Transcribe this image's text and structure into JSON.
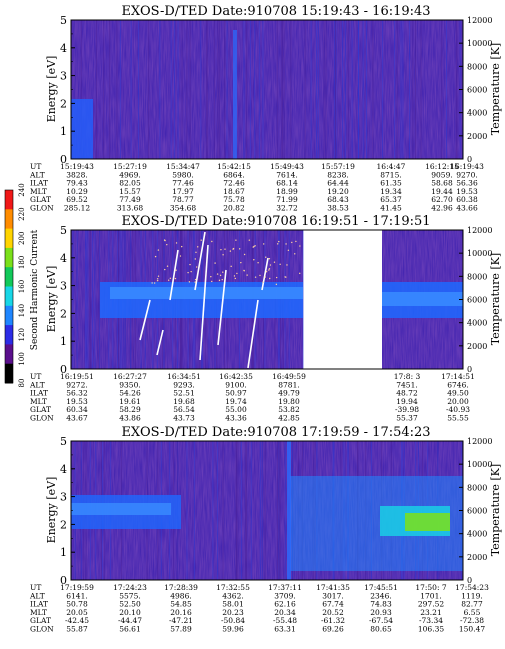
{
  "chart_data": [
    {
      "type": "heatmap",
      "title": "EXOS-D/TED   Date:910708   15:19:43 - 16:19:43",
      "ylabel": "Energy [eV]",
      "y2label": "Temperature [K]",
      "ylim": [
        0,
        5
      ],
      "y2lim": [
        0,
        12000
      ],
      "yticks": [
        "0",
        "1",
        "2",
        "3",
        "4",
        "5"
      ],
      "y2ticks": [
        "0",
        "2000",
        "4000",
        "6000",
        "8000",
        "10000",
        "12000"
      ],
      "row_labels": [
        "UT",
        "ALT",
        "ILAT",
        "MLT",
        "GLAT",
        "GLON"
      ],
      "columns": [
        [
          "15:19:43",
          "3828.",
          "79.43",
          "10.29",
          "69.52",
          "285.12"
        ],
        [
          "15:27:19",
          "4969.",
          "82.05",
          "15.57",
          "77.49",
          "313.68"
        ],
        [
          "15:34:47",
          "5980.",
          "77.46",
          "17.97",
          "78.77",
          "354.68"
        ],
        [
          "15:42:15",
          "6864.",
          "72.46",
          "18.67",
          "75.78",
          "20.82"
        ],
        [
          "15:49:43",
          "7614.",
          "68.14",
          "18.99",
          "71.99",
          "32.72"
        ],
        [
          "15:57:19",
          "8238.",
          "64.44",
          "19.20",
          "68.43",
          "38.53"
        ],
        [
          "16:4:47",
          "8715.",
          "61.35",
          "19.34",
          "65.37",
          "41.45"
        ],
        [
          "16:12:15",
          "9059.",
          "58.68",
          "19.44",
          "62.70",
          "42.96"
        ],
        [
          "16:19:43",
          "9270.",
          "56.36",
          "19.53",
          "60.38",
          "43.66"
        ]
      ]
    },
    {
      "type": "heatmap",
      "title": "EXOS-D/TED   Date:910708   16:19:51 - 17:19:51",
      "ylabel": "Energy [eV]",
      "y2label": "Temperature [K]",
      "ylim": [
        0,
        5
      ],
      "y2lim": [
        0,
        12000
      ],
      "yticks": [
        "0",
        "1",
        "2",
        "3",
        "4",
        "5"
      ],
      "y2ticks": [
        "0",
        "2000",
        "4000",
        "6000",
        "8000",
        "10000",
        "12000"
      ],
      "row_labels": [
        "UT",
        "ALT",
        "ILAT",
        "MLT",
        "GLAT",
        "GLON"
      ],
      "columns": [
        [
          "16:19:51",
          "9272.",
          "56.32",
          "19.53",
          "60.34",
          "43.67"
        ],
        [
          "16:27:27",
          "9350.",
          "54.26",
          "19.61",
          "58.29",
          "43.86"
        ],
        [
          "16:34:51",
          "9293.",
          "52.51",
          "19.68",
          "56.54",
          "43.73"
        ],
        [
          "16:42:35",
          "9100.",
          "50.97",
          "19.74",
          "55.00",
          "43.36"
        ],
        [
          "16:49:59",
          "8781.",
          "49.79",
          "19.80",
          "53.82",
          "42.85"
        ],
        [
          "17:8: 3",
          "7451.",
          "48.72",
          "19.94",
          "-39.98",
          "55.37"
        ],
        [
          "17:14:51",
          "6746.",
          "49.50",
          "20.00",
          "-40.93",
          "55.55"
        ]
      ]
    },
    {
      "type": "heatmap",
      "title": "EXOS-D/TED   Date:910708   17:19:59 - 17:54:23",
      "ylabel": "Energy [eV]",
      "y2label": "Temperature [K]",
      "ylim": [
        0,
        5
      ],
      "y2lim": [
        0,
        12000
      ],
      "yticks": [
        "0",
        "1",
        "2",
        "3",
        "4",
        "5"
      ],
      "y2ticks": [
        "0",
        "2000",
        "4000",
        "6000",
        "8000",
        "10000",
        "12000"
      ],
      "row_labels": [
        "UT",
        "ALT",
        "ILAT",
        "MLT",
        "GLAT",
        "GLON"
      ],
      "columns": [
        [
          "17:19:59",
          "6141.",
          "50.78",
          "20.05",
          "-42.45",
          "55.87"
        ],
        [
          "17:24:23",
          "5575.",
          "52.50",
          "20.10",
          "-44.47",
          "56.61"
        ],
        [
          "17:28:39",
          "4986.",
          "54.85",
          "20.16",
          "-47.21",
          "57.89"
        ],
        [
          "17:32:55",
          "4362.",
          "58.01",
          "20.23",
          "-50.84",
          "59.96"
        ],
        [
          "17:37:11",
          "3709.",
          "62.16",
          "20.34",
          "-55.48",
          "63.31"
        ],
        [
          "17:41:35",
          "3017.",
          "67.74",
          "20.52",
          "-61.32",
          "69.26"
        ],
        [
          "17:45:51",
          "2346.",
          "74.83",
          "20.93",
          "-67.54",
          "80.65"
        ],
        [
          "17:50: 7",
          "1701.",
          "297.52",
          "23.21",
          "-73.34",
          "106.35"
        ],
        [
          "17:54:23",
          "1119.",
          "82.77",
          "6.55",
          "-72.38",
          "150.47"
        ]
      ]
    },
    {
      "type": "colorbar",
      "label": "Second Harmonic Current",
      "ticks": [
        "80",
        "100",
        "120",
        "140",
        "160",
        "180",
        "200",
        "220",
        "240"
      ],
      "colors": [
        "#000000",
        "#5a0f8c",
        "#2c2ce6",
        "#1f86ff",
        "#18d6e6",
        "#12c95a",
        "#7be01a",
        "#ffd400",
        "#ff8c00",
        "#f01818"
      ]
    }
  ]
}
